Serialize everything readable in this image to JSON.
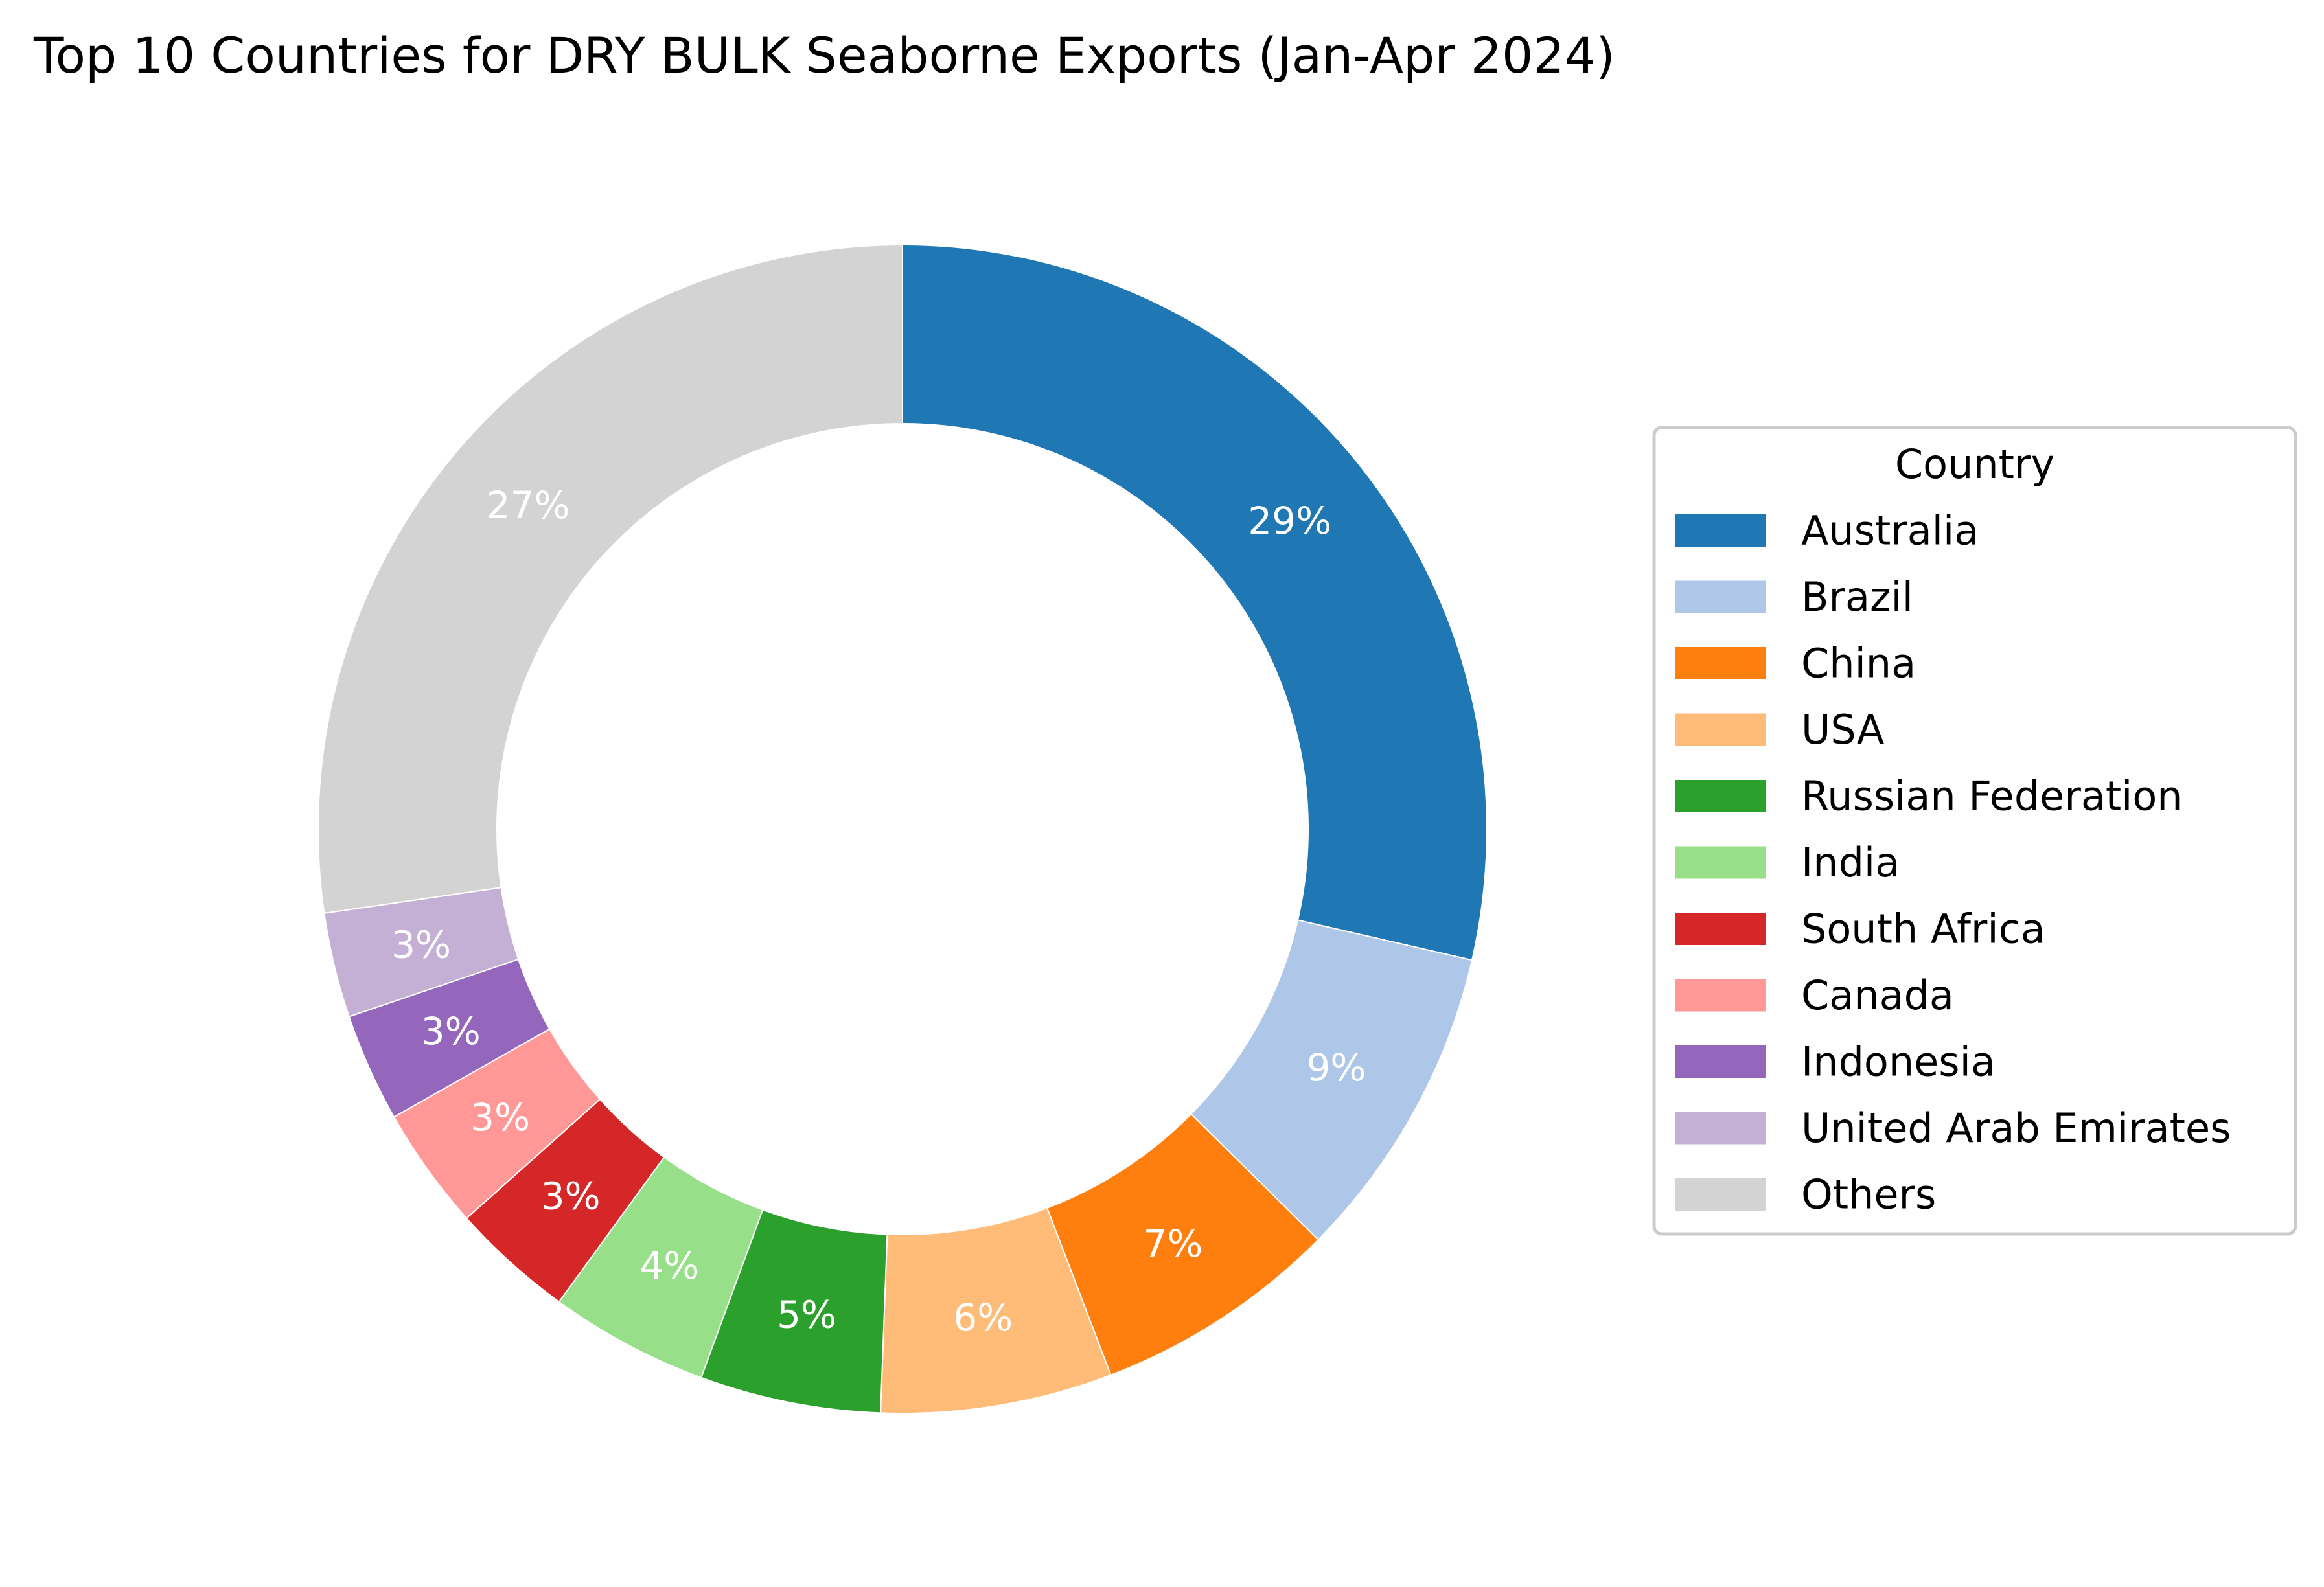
{
  "chart_data": {
    "type": "pie",
    "title": "Top 10 Countries for DRY BULK Seaborne Exports (Jan-Apr 2024)",
    "legend_title": "Country",
    "legend_position": "right",
    "donut": true,
    "start_angle": "top",
    "direction": "clockwise",
    "slices": [
      {
        "label": "Australia",
        "value": 28.6,
        "pct_label": "29%",
        "color": "#1f77b4"
      },
      {
        "label": "Brazil",
        "value": 8.8,
        "pct_label": "9%",
        "color": "#aec7e8"
      },
      {
        "label": "China",
        "value": 6.8,
        "pct_label": "7%",
        "color": "#ff7f0e"
      },
      {
        "label": "USA",
        "value": 6.4,
        "pct_label": "6%",
        "color": "#ffbb78"
      },
      {
        "label": "Russian Federation",
        "value": 5.0,
        "pct_label": "5%",
        "color": "#2ca02c"
      },
      {
        "label": "India",
        "value": 4.4,
        "pct_label": "4%",
        "color": "#98df8a"
      },
      {
        "label": "South Africa",
        "value": 3.4,
        "pct_label": "3%",
        "color": "#d62728"
      },
      {
        "label": "Canada",
        "value": 3.4,
        "pct_label": "3%",
        "color": "#ff9896"
      },
      {
        "label": "Indonesia",
        "value": 3.0,
        "pct_label": "3%",
        "color": "#9467bd"
      },
      {
        "label": "United Arab Emirates",
        "value": 2.9,
        "pct_label": "3%",
        "color": "#c5b0d5"
      },
      {
        "label": "Others",
        "value": 27.3,
        "pct_label": "27%",
        "color": "#d3d3d3"
      }
    ]
  }
}
